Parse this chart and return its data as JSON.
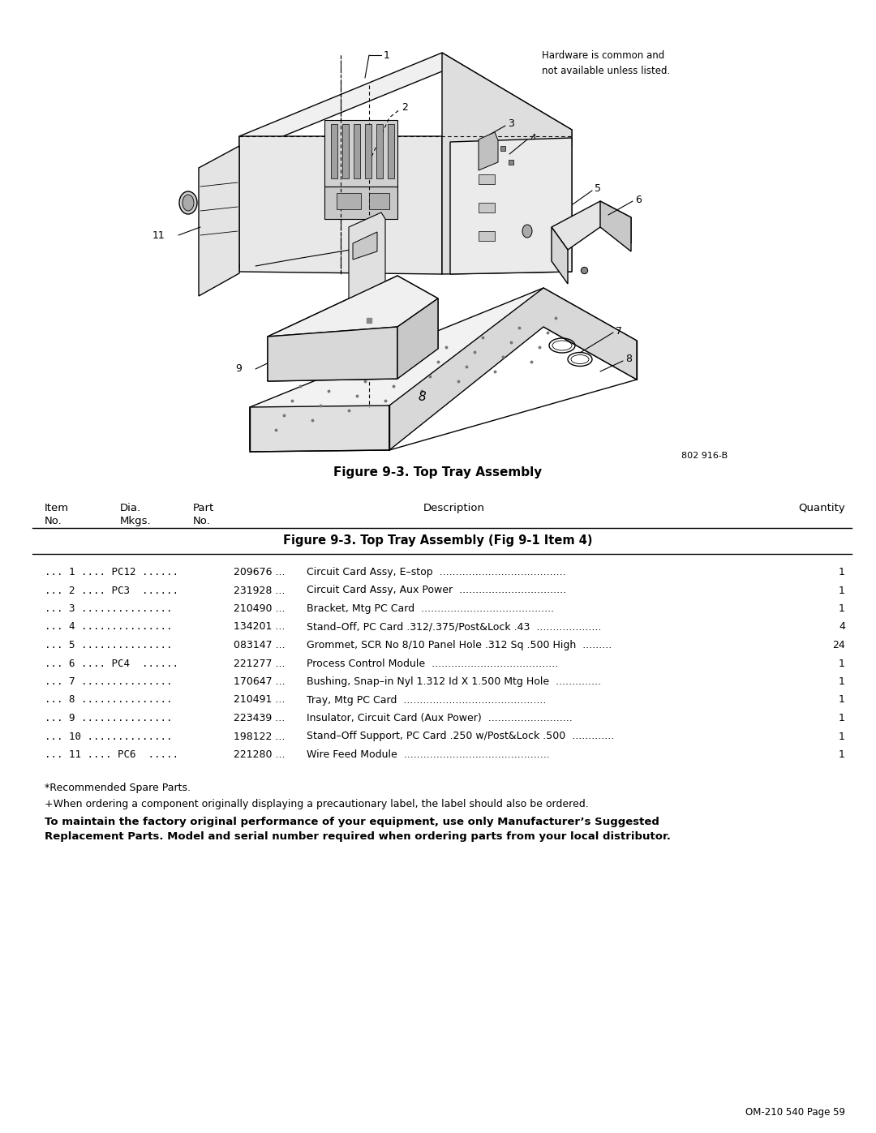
{
  "page_background": "#ffffff",
  "figure_caption": "Figure 9-3. Top Tray Assembly",
  "hardware_note": "Hardware is common and\nnot available unless listed.",
  "figure_code": "802 916-B",
  "page_id": "OM-210 540 Page 59",
  "table_title": "Figure 9-3. Top Tray Assembly (Fig 9-1 Item 4)",
  "footnote1": "*Recommended Spare Parts.",
  "footnote2": "+When ordering a component originally displaying a precautionary label, the label should also be ordered.",
  "footnote3": "To maintain the factory original performance of your equipment, use only Manufacturer’s Suggested\nReplacement Parts. Model and serial number required when ordering parts from your local distributor."
}
